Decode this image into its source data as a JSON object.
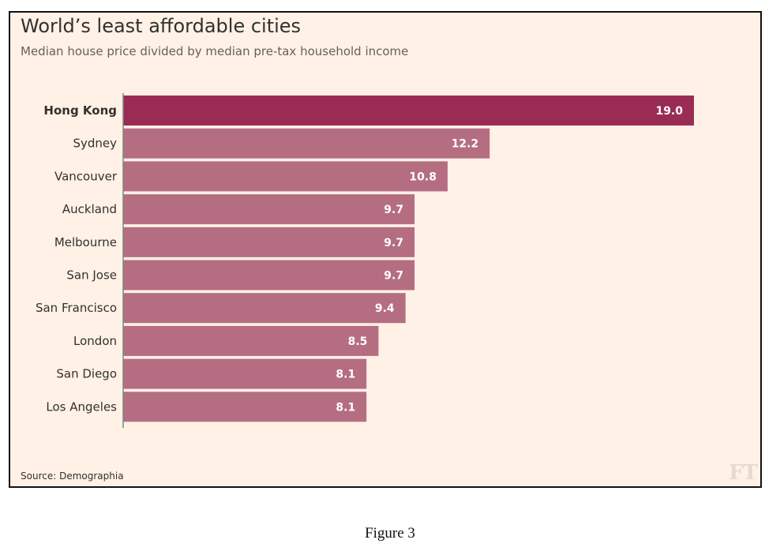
{
  "chart_data": {
    "type": "bar",
    "orientation": "horizontal",
    "title": "World’s least affordable cities",
    "subtitle": "Median house price divided by median pre-tax household income",
    "categories": [
      "Hong Kong",
      "Sydney",
      "Vancouver",
      "Auckland",
      "Melbourne",
      "San Jose",
      "San Francisco",
      "London",
      "San Diego",
      "Los Angeles"
    ],
    "values": [
      19.0,
      12.2,
      10.8,
      9.7,
      9.7,
      9.7,
      9.4,
      8.5,
      8.1,
      8.1
    ],
    "value_labels": [
      "19.0",
      "12.2",
      "10.8",
      "9.7",
      "9.7",
      "9.7",
      "9.4",
      "8.5",
      "8.1",
      "8.1"
    ],
    "xlim": [
      0,
      19.0
    ],
    "highlight_category": "Hong Kong",
    "colors": {
      "highlight": "#9a2c53",
      "bar": "#b56d82",
      "bar_separator": "#ffffff",
      "axis": "#7a8a82",
      "label": "#33302e",
      "value_label": "#ffffff"
    },
    "grid": false,
    "legend": "none"
  },
  "source": "Source: Demographia",
  "logo": "FT",
  "caption": "Figure 3"
}
